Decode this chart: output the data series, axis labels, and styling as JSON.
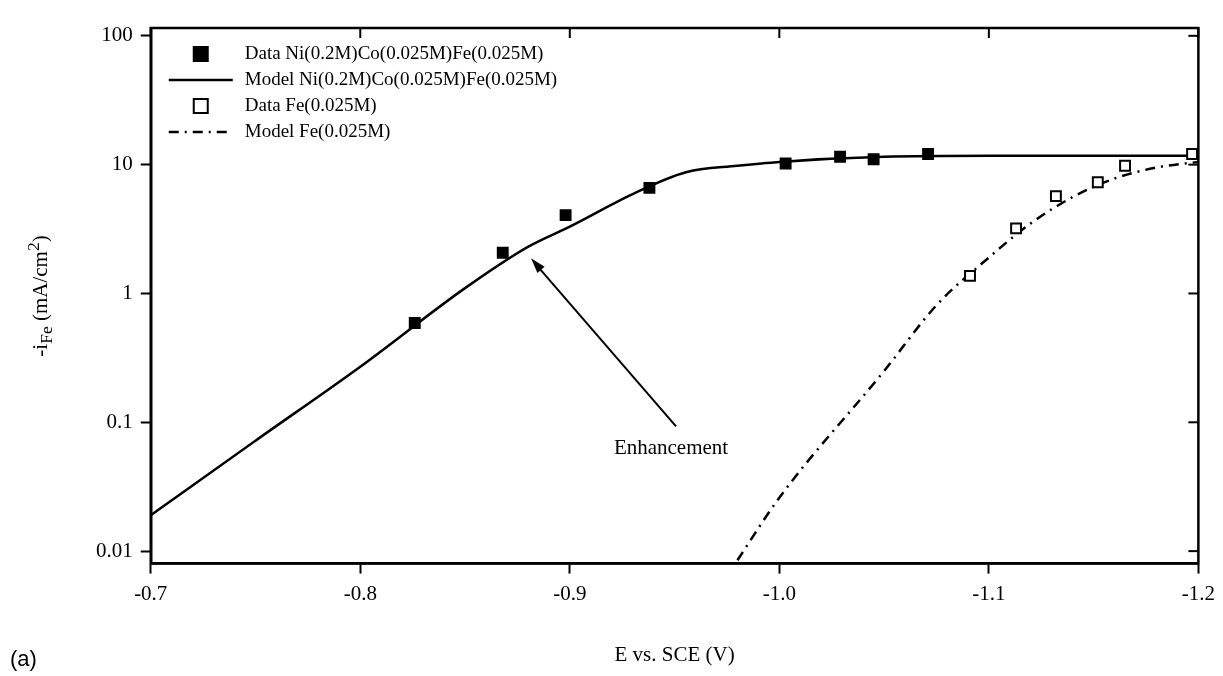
{
  "chart_data": {
    "type": "scatter",
    "xlabel": "E vs. SCE (V)",
    "ylabel": "-i$_{Fe}$ (mA/cm$^{2}$)",
    "xlim": [
      -0.7,
      -1.2
    ],
    "xticks": [
      -0.7,
      -0.8,
      -0.9,
      {
        "value": -1.0,
        "label": "-1.0"
      },
      -1.1,
      -1.2
    ],
    "ylim": [
      0.008,
      115
    ],
    "yticks": [
      0.01,
      0.1,
      1,
      10,
      100
    ],
    "log": "y",
    "grid": false,
    "legend": "top left",
    "series": [
      {
        "name": "Data Ni(0.2M)Co(0.025M)Fe(0.025M)",
        "marker": "square",
        "color": "#000000",
        "x": [
          -0.826,
          -0.868,
          -0.898,
          -0.938,
          -1.003,
          -1.029,
          -1.045,
          -1.071
        ],
        "values": [
          0.59,
          2.07,
          4.06,
          6.6,
          10.2,
          11.5,
          11.0,
          12.1
        ]
      },
      {
        "name": "Model Ni(0.2M)Co(0.025M)Fe(0.025M)",
        "type": "line",
        "marker": "none",
        "line_style": "solid",
        "color": "#000000",
        "x": [
          -0.7,
          -0.75,
          -0.8,
          -0.85,
          -0.88,
          -0.9,
          -0.93,
          -0.955,
          -0.98,
          -1.0,
          -1.05,
          -1.1,
          -1.2
        ],
        "values": [
          0.019,
          0.072,
          0.27,
          1.1,
          2.3,
          3.3,
          5.9,
          8.7,
          9.8,
          10.5,
          11.5,
          11.7,
          11.7
        ]
      },
      {
        "name": "Data Fe(0.025M)",
        "marker": "square",
        "color": "#ffffff",
        "x": [
          -1.091,
          -1.113,
          -1.132,
          -1.152,
          -1.165,
          -1.197
        ],
        "values": [
          1.37,
          3.2,
          5.7,
          7.3,
          9.8,
          12.1
        ]
      },
      {
        "name": "Model Fe(0.025M)",
        "type": "line",
        "marker": "none",
        "line_style": "dashed",
        "color": "#000000",
        "x": [
          -0.98,
          -1.0,
          -1.05,
          -1.075,
          -1.1,
          -1.12,
          -1.14,
          -1.16,
          -1.18,
          -1.2
        ],
        "values": [
          0.0085,
          0.026,
          0.25,
          0.81,
          1.9,
          3.5,
          5.6,
          7.8,
          9.5,
          10.5
        ]
      }
    ],
    "annotations": [
      "Enhancement",
      "(a)"
    ]
  }
}
